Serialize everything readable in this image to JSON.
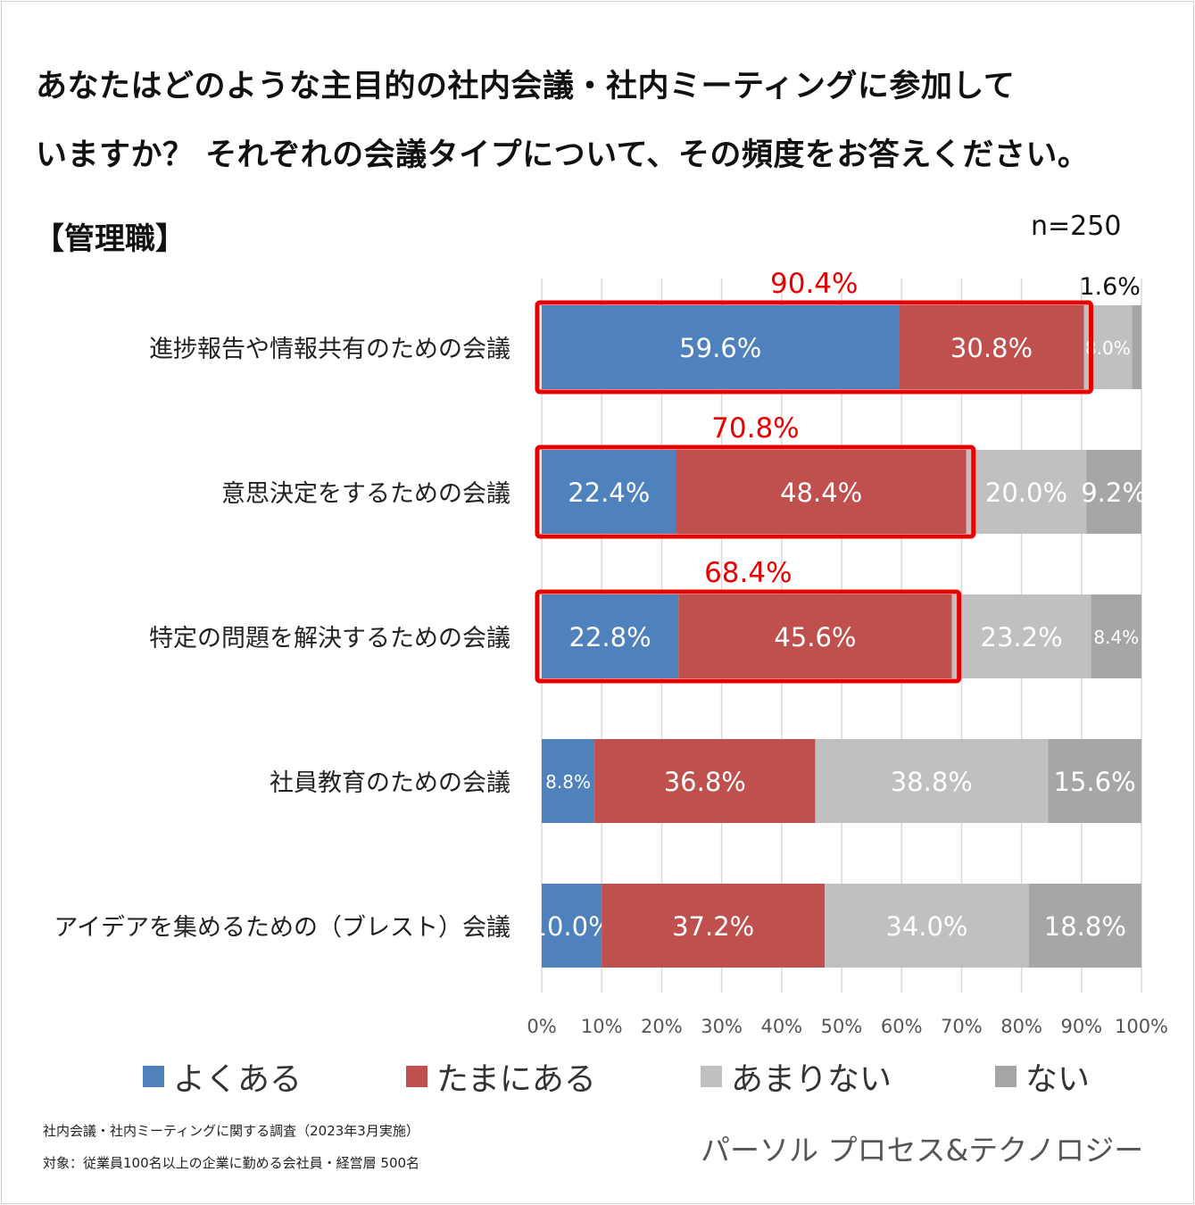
{
  "title_line1": "あなたはどのような主目的の社内会議・社内ミーティングに参加して",
  "title_line2": "いますか？ それぞれの会議タイプについて、その頻度をお答えください。",
  "subtitle": "【管理職】",
  "n_label": "n=250",
  "colors": {
    "often": "#4f81bd",
    "sometimes": "#c0504d",
    "rarely": "#c0c0c0",
    "never": "#a6a6a6",
    "highlight": "#e80000",
    "grid": "#d9d9d9"
  },
  "chart_data": {
    "type": "bar",
    "orientation": "horizontal",
    "stacked": true,
    "categories": [
      "進捗報告や情報共有のための会議",
      "意思決定をするための会議",
      "特定の問題を解決するための会議",
      "社員教育のための会議",
      "アイデアを集めるための（ブレスト）会議"
    ],
    "series": [
      {
        "name": "よくある",
        "values": [
          59.6,
          22.4,
          22.8,
          8.8,
          10.0
        ]
      },
      {
        "name": "たまにある",
        "values": [
          30.8,
          48.4,
          45.6,
          36.8,
          37.2
        ]
      },
      {
        "name": "あまりない",
        "values": [
          8.0,
          20.0,
          23.2,
          38.8,
          34.0
        ]
      },
      {
        "name": "ない",
        "values": [
          1.6,
          9.2,
          8.4,
          15.6,
          18.8
        ]
      }
    ],
    "data_labels": [
      [
        "59.6%",
        "30.8%",
        "8.0%",
        "1.6%"
      ],
      [
        "22.4%",
        "48.4%",
        "20.0%",
        "9.2%"
      ],
      [
        "22.8%",
        "45.6%",
        "23.2%",
        "8.4%"
      ],
      [
        "8.8%",
        "36.8%",
        "38.8%",
        "15.6%"
      ],
      [
        "10.0%",
        "37.2%",
        "34.0%",
        "18.8%"
      ]
    ],
    "highlight_totals": [
      "90.4%",
      "70.8%",
      "68.4%"
    ],
    "xticks": [
      "0%",
      "10%",
      "20%",
      "30%",
      "40%",
      "50%",
      "60%",
      "70%",
      "80%",
      "90%",
      "100%"
    ],
    "xlim": [
      0,
      100
    ],
    "grid": true,
    "legend_position": "bottom"
  },
  "legend": [
    "よくある",
    "たまにある",
    "あまりない",
    "ない"
  ],
  "note_line1": "社内会議・社内ミーティングに関する調査（2023年3月実施）",
  "note_line2": "対象：従業員100名以上の企業に勤める会社員・経営層 500名",
  "brand": "パーソル プロセス&テクノロジー"
}
